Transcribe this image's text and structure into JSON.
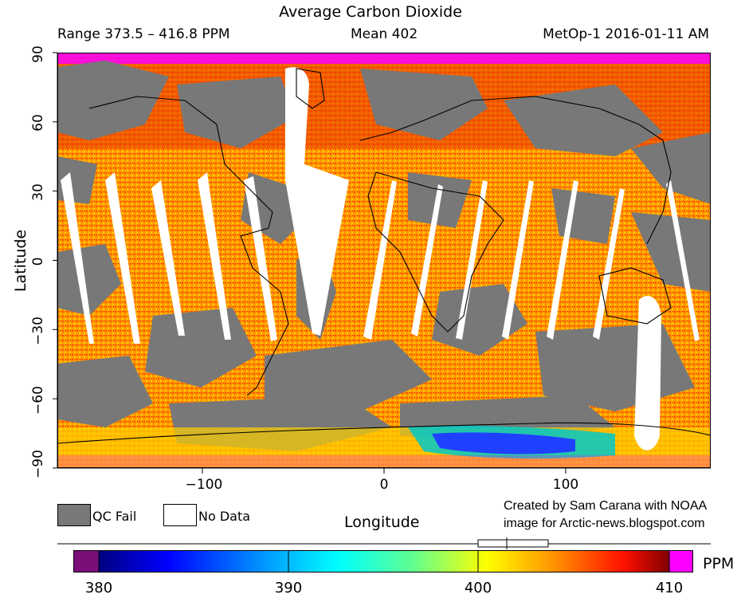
{
  "title": "Average Carbon Dioxide",
  "subtitle": {
    "range": "Range 373.5 – 416.8 PPM",
    "mean": "Mean 402",
    "instrument": "MetOp-1 2016-01-11 AM"
  },
  "axes": {
    "x_label": "Longitude",
    "y_label": "Latitude",
    "x_ticks": [
      "−100",
      "0",
      "100"
    ],
    "y_ticks": [
      "90",
      "60",
      "30",
      "0",
      "−30",
      "−60",
      "−90"
    ]
  },
  "legend": {
    "qc_fail_label": "QC Fail",
    "no_data_label": "No Data",
    "qc_fail_color": "#787878",
    "no_data_color": "#ffffff"
  },
  "credit": {
    "line1": "Created by Sam Carana with NOAA",
    "line2": "image for Arctic-news.blogspot.com"
  },
  "colorbar": {
    "unit": "PPM",
    "ticks": [
      "380",
      "390",
      "400",
      "410"
    ],
    "min": 378.7,
    "max": 411.3,
    "below_color": "#7a0f7a",
    "above_color": "#ff00ff",
    "mean_value": 402,
    "range_min": 373.5,
    "range_max": 416.8
  },
  "map_colors": {
    "qc_fail": "#787878",
    "no_data": "#ffffff",
    "high": "#ff00ff"
  }
}
